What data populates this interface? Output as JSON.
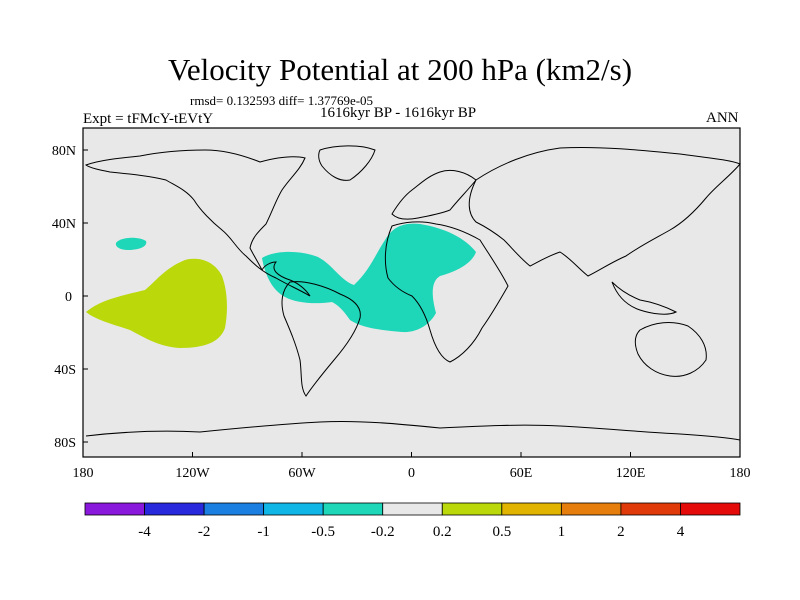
{
  "header": {
    "title": "Velocity Potential at 200 hPa (km2/s)",
    "stats": "rmsd= 0.132593 diff= 1.37769e-05",
    "experiment": "Expt = tFMcY-tEVtY",
    "period": "1616kyr BP - 1616kyr BP",
    "season": "ANN"
  },
  "map": {
    "projection": "cylindrical-equidistant",
    "lon_range": [
      -180,
      180
    ],
    "lat_range": [
      -90,
      90
    ],
    "background_color": "#e8e8e8",
    "lat_ticks": [
      "80N",
      "40N",
      "0",
      "40S",
      "80S"
    ],
    "lon_ticks": [
      "180",
      "120W",
      "60W",
      "0",
      "60E",
      "120E",
      "180"
    ]
  },
  "legend": {
    "colors": [
      "#8a17dc",
      "#2828dc",
      "#1a7fe0",
      "#10b6e6",
      "#1ed6b8",
      "#e8e8e8",
      "#bad80a",
      "#e0b400",
      "#e57e0c",
      "#e03a0a",
      "#e40a0a"
    ],
    "labels": [
      "-4",
      "-2",
      "-1",
      "-0.5",
      "-0.2",
      "0.2",
      "0.5",
      "1",
      "2",
      "4"
    ]
  }
}
